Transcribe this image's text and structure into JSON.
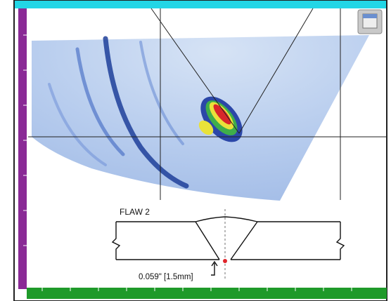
{
  "diagram": {
    "label": "FLAW 2",
    "dimension": "0.059\" [1.5mm]"
  }
}
